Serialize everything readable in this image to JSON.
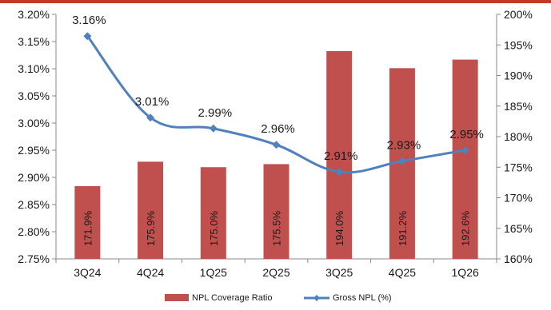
{
  "chart_data": {
    "type": "bar",
    "categories": [
      "3Q24",
      "4Q24",
      "1Q25",
      "2Q25",
      "3Q25",
      "4Q25",
      "1Q26"
    ],
    "series": [
      {
        "name": "NPL Coverage Ratio",
        "type": "bar",
        "axis": "right",
        "values": [
          171.9,
          175.9,
          175.0,
          175.5,
          194.0,
          191.2,
          192.6
        ],
        "labels": [
          "171.9%",
          "175.9%",
          "175.0%",
          "175.5%",
          "194.0%",
          "191.2%",
          "192.6%"
        ],
        "color": "#c0504d"
      },
      {
        "name": "Gross NPL (%)",
        "type": "line",
        "axis": "left",
        "values": [
          3.16,
          3.01,
          2.99,
          2.96,
          2.91,
          2.93,
          2.95
        ],
        "labels": [
          "3.16%",
          "3.01%",
          "2.99%",
          "2.96%",
          "2.91%",
          "2.93%",
          "2.95%"
        ],
        "color": "#4f81bd"
      }
    ],
    "left_axis": {
      "ylim": [
        2.75,
        3.2
      ],
      "ticks": [
        "2.75%",
        "2.80%",
        "2.85%",
        "2.90%",
        "2.95%",
        "3.00%",
        "3.05%",
        "3.10%",
        "3.15%",
        "3.20%"
      ]
    },
    "right_axis": {
      "ylim": [
        160,
        200
      ],
      "ticks": [
        "160%",
        "165%",
        "170%",
        "175%",
        "180%",
        "185%",
        "190%",
        "195%",
        "200%"
      ]
    },
    "legend": {
      "placement": "bottom",
      "items": [
        "NPL Coverage Ratio",
        "Gross NPL (%)"
      ]
    },
    "grid": false,
    "title": "",
    "xlabel": "",
    "ylabel": ""
  }
}
